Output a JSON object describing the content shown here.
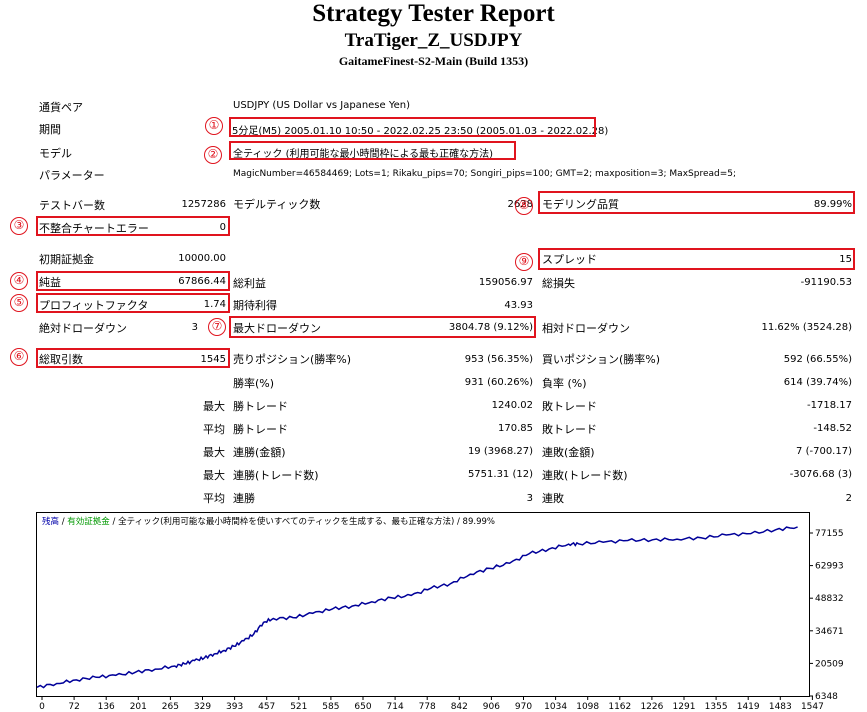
{
  "header": {
    "title": "Strategy Tester Report",
    "ea_name": "TraTiger_Z_USDJPY",
    "server": "GaitameFinest-S2-Main (Build 1353)"
  },
  "info": {
    "symbol_label": "通貨ペア",
    "symbol_value": "USDJPY (US Dollar vs Japanese Yen)",
    "period_label": "期間",
    "period_value": "5分足(M5) 2005.01.10 10:50 - 2022.02.25 23:50 (2005.01.03 - 2022.02.28)",
    "model_label": "モデル",
    "model_value": "全ティック (利用可能な最小時間枠による最も正確な方法)",
    "params_label": "パラメーター",
    "params_value": "MagicNumber=46584469; Lots=1; Rikaku_pips=70; Songiri_pips=100; GMT=2; maxposition=3; MaxSpread=5;"
  },
  "stats": {
    "bars_label": "テストバー数",
    "bars_value": "1257286",
    "ticks_label": "モデルティック数",
    "ticks_value": "2628",
    "quality_label": "モデリング品質",
    "quality_value": "89.99%",
    "mismatch_label": "不整合チャートエラー",
    "mismatch_value": "0",
    "deposit_label": "初期証拠金",
    "deposit_value": "10000.00",
    "spread_label": "スプレッド",
    "spread_value": "15",
    "net_label": "純益",
    "net_value": "67866.44",
    "gross_profit_label": "総利益",
    "gross_profit_value": "159056.97",
    "gross_loss_label": "総損失",
    "gross_loss_value": "-91190.53",
    "pf_label": "プロフィットファクタ",
    "pf_value": "1.74",
    "payoff_label": "期待利得",
    "payoff_value": "43.93",
    "abs_dd_label": "絶対ドローダウン",
    "abs_dd_value": "3",
    "max_dd_label": "最大ドローダウン",
    "max_dd_value": "3804.78 (9.12%)",
    "rel_dd_label": "相対ドローダウン",
    "rel_dd_value": "11.62% (3524.28)",
    "trades_label": "総取引数",
    "trades_value": "1545",
    "short_label": "売りポジション(勝率%)",
    "short_value": "953 (56.35%)",
    "long_label": "買いポジション(勝率%)",
    "long_value": "592 (66.55%)",
    "win_label": "勝率(%)",
    "win_value": "931 (60.26%)",
    "loss_label": "負率 (%)",
    "loss_value": "614 (39.74%)",
    "rows": [
      {
        "p": "最大",
        "l1": "勝トレード",
        "v1": "1240.02",
        "l2": "敗トレード",
        "v2": "-1718.17"
      },
      {
        "p": "平均",
        "l1": "勝トレード",
        "v1": "170.85",
        "l2": "敗トレード",
        "v2": "-148.52"
      },
      {
        "p": "最大",
        "l1": "連勝(金額)",
        "v1": "19 (3968.27)",
        "l2": "連敗(金額)",
        "v2": "7 (-700.17)"
      },
      {
        "p": "最大",
        "l1": "連勝(トレード数)",
        "v1": "5751.31 (12)",
        "l2": "連敗(トレード数)",
        "v2": "-3076.68 (3)"
      },
      {
        "p": "平均",
        "l1": "連勝",
        "v1": "3",
        "l2": "連敗",
        "v2": "2"
      }
    ]
  },
  "markers": [
    "①",
    "②",
    "③",
    "④",
    "⑤",
    "⑥",
    "⑦",
    "⑧",
    "⑨"
  ],
  "chart_data": {
    "type": "line",
    "legend_parts": [
      "残高",
      " / ",
      "有効証拠金",
      " / ",
      "全ティック(利用可能な最小時間枠を使いすべてのティックを生成する、最も正確な方法)",
      " / 89.99%"
    ],
    "legend_colors": [
      "#0000aa",
      "#000000",
      "#009900",
      "#000000",
      "#000000",
      "#000000"
    ],
    "series_color": "#000099",
    "x_ticks": [
      "0",
      "72",
      "136",
      "201",
      "265",
      "329",
      "393",
      "457",
      "521",
      "585",
      "650",
      "714",
      "778",
      "842",
      "906",
      "970",
      "1034",
      "1098",
      "1162",
      "1226",
      "1291",
      "1355",
      "1419",
      "1483",
      "1547"
    ],
    "y_ticks": [
      "77155",
      "62993",
      "48832",
      "34671",
      "20509",
      "6348"
    ],
    "ylim": [
      6348,
      77155
    ],
    "xlim": [
      0,
      1560
    ],
    "series": [
      {
        "x": [
          0,
          40,
          80,
          120,
          160,
          200,
          240,
          280,
          300,
          320,
          340,
          360,
          380,
          400,
          420,
          440,
          460,
          480,
          520,
          560,
          600,
          640,
          680,
          720,
          760,
          800,
          840,
          880,
          920,
          960,
          1000,
          1040,
          1080,
          1100,
          1150,
          1200,
          1250,
          1300,
          1350,
          1400,
          1450,
          1500,
          1545
        ],
        "y": [
          10000,
          11600,
          13100,
          14200,
          15000,
          16300,
          17600,
          18900,
          19800,
          21200,
          22300,
          24000,
          25400,
          27200,
          29500,
          32200,
          37200,
          38800,
          39200,
          41000,
          42800,
          44000,
          45800,
          47500,
          48500,
          51500,
          53400,
          57400,
          59800,
          62000,
          66000,
          67900,
          70000,
          70100,
          70800,
          71500,
          71800,
          72100,
          72600,
          73800,
          74400,
          76000,
          77200
        ]
      }
    ]
  }
}
